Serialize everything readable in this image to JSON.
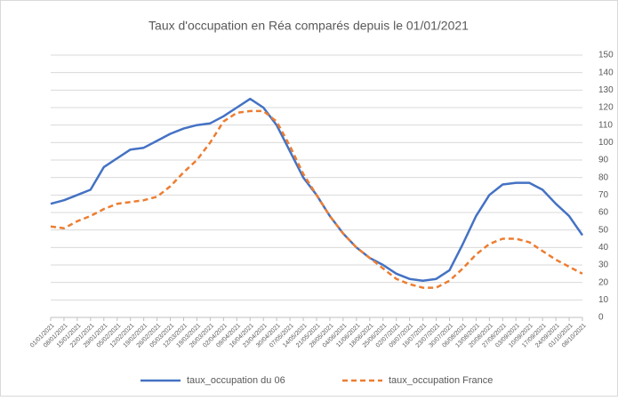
{
  "chart_data": {
    "type": "line",
    "title": "Taux d'occupation en Réa comparés depuis le 01/01/2021",
    "categories": [
      "01/01/2021",
      "08/01/2021",
      "15/01/2021",
      "22/01/2021",
      "29/01/2021",
      "05/02/2021",
      "12/02/2021",
      "19/02/2021",
      "26/02/2021",
      "05/03/2021",
      "12/03/2021",
      "19/03/2021",
      "26/03/2021",
      "02/04/2021",
      "09/04/2021",
      "16/04/2021",
      "23/04/2021",
      "30/04/2021",
      "07/05/2021",
      "14/05/2021",
      "21/05/2021",
      "28/05/2021",
      "04/06/2021",
      "11/06/2021",
      "18/06/2021",
      "25/06/2021",
      "02/07/2021",
      "09/07/2021",
      "16/07/2021",
      "23/07/2021",
      "30/07/2021",
      "06/08/2021",
      "13/08/2021",
      "20/08/2021",
      "27/08/2021",
      "03/09/2021",
      "10/09/2021",
      "17/09/2021",
      "24/09/2021",
      "01/10/2021",
      "08/10/2021"
    ],
    "series": [
      {
        "name": "taux_occupation du 06",
        "color": "#4472c4",
        "dashed": false,
        "values": [
          65,
          67,
          70,
          73,
          86,
          91,
          96,
          97,
          101,
          105,
          108,
          110,
          111,
          115,
          120,
          125,
          120,
          110,
          95,
          80,
          70,
          58,
          48,
          40,
          34,
          30,
          25,
          22,
          21,
          22,
          27,
          42,
          58,
          70,
          76,
          77,
          77,
          73,
          65,
          58,
          47
        ]
      },
      {
        "name": "taux_occupation France",
        "color": "#ed7d31",
        "dashed": true,
        "values": [
          52,
          51,
          55,
          58,
          62,
          65,
          66,
          67,
          69,
          75,
          83,
          90,
          100,
          112,
          117,
          118,
          118,
          112,
          98,
          82,
          70,
          58,
          48,
          40,
          34,
          28,
          22,
          19,
          17,
          17,
          21,
          28,
          36,
          42,
          45,
          45,
          43,
          38,
          33,
          29,
          25
        ]
      }
    ],
    "ylim": [
      0,
      150
    ],
    "yticks": [
      0,
      10,
      20,
      30,
      40,
      50,
      60,
      70,
      80,
      90,
      100,
      110,
      120,
      130,
      140,
      150
    ],
    "grid": true
  }
}
